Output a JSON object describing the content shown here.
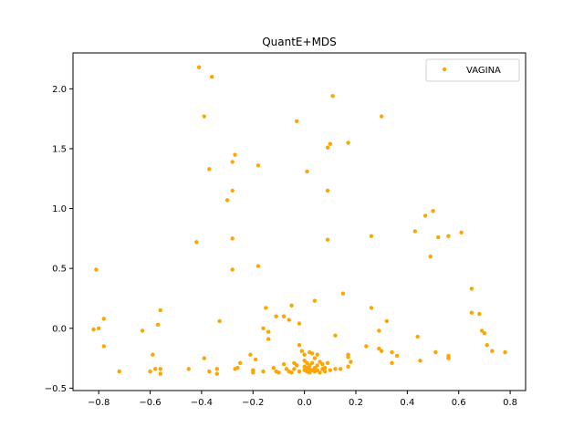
{
  "chart_data": {
    "type": "scatter",
    "title": "QuantE+MDS",
    "xlabel": "",
    "ylabel": "",
    "xlim": [
      -0.9,
      0.86
    ],
    "ylim": [
      -0.52,
      2.3
    ],
    "x_ticks": [
      -0.8,
      -0.6,
      -0.4,
      -0.2,
      0.0,
      0.2,
      0.4,
      0.6,
      0.8
    ],
    "x_tick_labels": [
      "−0.8",
      "−0.6",
      "−0.4",
      "−0.2",
      "0.0",
      "0.2",
      "0.4",
      "0.6",
      "0.8"
    ],
    "y_ticks": [
      -0.5,
      0.0,
      0.5,
      1.0,
      1.5,
      2.0
    ],
    "y_tick_labels": [
      "−0.5",
      "0.0",
      "0.5",
      "1.0",
      "1.5",
      "2.0"
    ],
    "grid": false,
    "legend_position": "top-right",
    "series": [
      {
        "name": "VAGINA",
        "color": "#ffa500",
        "points": [
          [
            -0.41,
            2.18
          ],
          [
            -0.36,
            2.1
          ],
          [
            -0.39,
            1.77
          ],
          [
            0.11,
            1.94
          ],
          [
            0.3,
            1.77
          ],
          [
            -0.03,
            1.73
          ],
          [
            -0.37,
            1.33
          ],
          [
            -0.27,
            1.45
          ],
          [
            -0.28,
            1.39
          ],
          [
            -0.18,
            1.36
          ],
          [
            0.09,
            1.51
          ],
          [
            0.1,
            1.54
          ],
          [
            0.17,
            1.55
          ],
          [
            0.01,
            1.31
          ],
          [
            -0.3,
            1.07
          ],
          [
            -0.28,
            1.15
          ],
          [
            0.09,
            1.15
          ],
          [
            0.47,
            0.94
          ],
          [
            0.5,
            0.98
          ],
          [
            -0.28,
            0.75
          ],
          [
            -0.42,
            0.72
          ],
          [
            0.09,
            0.74
          ],
          [
            0.26,
            0.77
          ],
          [
            0.43,
            0.81
          ],
          [
            0.52,
            0.76
          ],
          [
            0.56,
            0.77
          ],
          [
            0.61,
            0.8
          ],
          [
            0.49,
            0.6
          ],
          [
            -0.81,
            0.49
          ],
          [
            -0.28,
            0.49
          ],
          [
            -0.18,
            0.52
          ],
          [
            0.65,
            0.33
          ],
          [
            0.15,
            0.29
          ],
          [
            0.04,
            0.23
          ],
          [
            -0.15,
            0.17
          ],
          [
            -0.05,
            0.19
          ],
          [
            -0.56,
            0.15
          ],
          [
            0.26,
            0.17
          ],
          [
            -0.78,
            0.08
          ],
          [
            -0.57,
            0.03
          ],
          [
            -0.33,
            0.06
          ],
          [
            -0.11,
            0.1
          ],
          [
            -0.08,
            0.1
          ],
          [
            -0.06,
            0.07
          ],
          [
            -0.02,
            0.04
          ],
          [
            0.32,
            0.06
          ],
          [
            0.65,
            0.13
          ],
          [
            0.68,
            0.12
          ],
          [
            -0.82,
            -0.01
          ],
          [
            -0.63,
            -0.02
          ],
          [
            -0.16,
            0.0
          ],
          [
            -0.14,
            -0.03
          ],
          [
            -0.14,
            -0.09
          ],
          [
            0.29,
            -0.02
          ],
          [
            0.69,
            -0.02
          ],
          [
            0.7,
            -0.04
          ],
          [
            0.12,
            -0.06
          ],
          [
            0.44,
            -0.07
          ],
          [
            0.71,
            -0.14
          ],
          [
            0.73,
            -0.19
          ],
          [
            0.78,
            -0.2
          ],
          [
            -0.78,
            -0.15
          ],
          [
            0.24,
            -0.15
          ],
          [
            0.29,
            -0.17
          ],
          [
            0.3,
            -0.19
          ],
          [
            0.34,
            -0.2
          ],
          [
            0.36,
            -0.23
          ],
          [
            0.51,
            -0.2
          ],
          [
            0.56,
            -0.23
          ],
          [
            0.56,
            -0.25
          ],
          [
            -0.59,
            -0.22
          ],
          [
            -0.39,
            -0.25
          ],
          [
            -0.21,
            -0.22
          ],
          [
            -0.19,
            -0.26
          ],
          [
            0.17,
            -0.22
          ],
          [
            0.17,
            -0.24
          ],
          [
            0.45,
            -0.27
          ],
          [
            0.34,
            -0.29
          ],
          [
            0.18,
            -0.28
          ],
          [
            -0.72,
            -0.36
          ],
          [
            -0.6,
            -0.36
          ],
          [
            -0.58,
            -0.34
          ],
          [
            -0.56,
            -0.34
          ],
          [
            -0.56,
            -0.38
          ],
          [
            -0.45,
            -0.34
          ],
          [
            -0.37,
            -0.36
          ],
          [
            -0.34,
            -0.34
          ],
          [
            -0.34,
            -0.38
          ],
          [
            -0.27,
            -0.34
          ],
          [
            -0.26,
            -0.33
          ],
          [
            -0.25,
            -0.29
          ],
          [
            -0.2,
            -0.35
          ],
          [
            -0.2,
            -0.37
          ],
          [
            -0.16,
            -0.36
          ],
          [
            -0.12,
            -0.33
          ],
          [
            -0.11,
            -0.36
          ],
          [
            -0.1,
            -0.37
          ],
          [
            -0.08,
            -0.3
          ],
          [
            -0.07,
            -0.34
          ],
          [
            -0.06,
            -0.36
          ],
          [
            -0.05,
            -0.37
          ],
          [
            -0.04,
            -0.34
          ],
          [
            -0.04,
            -0.29
          ],
          [
            -0.03,
            -0.31
          ],
          [
            -0.02,
            -0.36
          ],
          [
            -0.02,
            -0.14
          ],
          [
            -0.01,
            -0.19
          ],
          [
            0.0,
            -0.22
          ],
          [
            0.0,
            -0.27
          ],
          [
            0.0,
            -0.32
          ],
          [
            0.0,
            -0.35
          ],
          [
            0.01,
            -0.29
          ],
          [
            0.01,
            -0.33
          ],
          [
            0.01,
            -0.36
          ],
          [
            0.02,
            -0.2
          ],
          [
            0.02,
            -0.31
          ],
          [
            0.02,
            -0.34
          ],
          [
            0.02,
            -0.37
          ],
          [
            0.03,
            -0.21
          ],
          [
            0.03,
            -0.29
          ],
          [
            0.03,
            -0.35
          ],
          [
            0.04,
            -0.25
          ],
          [
            0.04,
            -0.33
          ],
          [
            0.04,
            -0.36
          ],
          [
            0.05,
            -0.22
          ],
          [
            0.05,
            -0.31
          ],
          [
            0.05,
            -0.35
          ],
          [
            0.06,
            -0.28
          ],
          [
            0.06,
            -0.37
          ],
          [
            0.07,
            -0.3
          ],
          [
            0.07,
            -0.34
          ],
          [
            0.08,
            -0.33
          ],
          [
            0.08,
            -0.36
          ],
          [
            0.09,
            -0.29
          ],
          [
            0.1,
            -0.35
          ],
          [
            0.12,
            -0.34
          ],
          [
            0.14,
            -0.34
          ],
          [
            0.17,
            -0.32
          ],
          [
            -0.8,
            0.0
          ]
        ]
      }
    ]
  }
}
